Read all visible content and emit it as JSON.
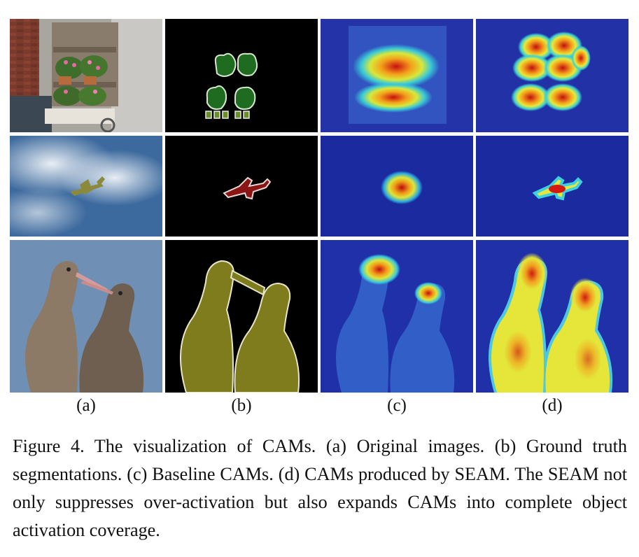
{
  "figure": {
    "column_labels": [
      "(a)",
      "(b)",
      "(c)",
      "(d)"
    ],
    "rows": [
      {
        "subject": "flower cart",
        "panels": [
          "original-image",
          "ground-truth-segmentation",
          "baseline-cam",
          "seam-cam"
        ]
      },
      {
        "subject": "airplane",
        "panels": [
          "original-image",
          "ground-truth-segmentation",
          "baseline-cam",
          "seam-cam"
        ]
      },
      {
        "subject": "birds",
        "panels": [
          "original-image",
          "ground-truth-segmentation",
          "baseline-cam",
          "seam-cam"
        ]
      }
    ],
    "caption": {
      "label": "Figure 4.",
      "text": "The visualization of CAMs.  (a) Original images.  (b) Ground truth segmentations. (c) Baseline CAMs. (d) CAMs produced by SEAM. The SEAM not only suppresses over-activation but also expands CAMs into complete object activation coverage."
    }
  },
  "colors": {
    "background": "#ffffff",
    "segmentation_background": "#000000",
    "plant_class": "#1f6b1f",
    "pot_class": "#6a8f2a",
    "airplane_class": "#8b1414",
    "bird_class": "#7e7c1d",
    "cam_low": "#1a2aa8",
    "cam_high": "#d01010"
  }
}
